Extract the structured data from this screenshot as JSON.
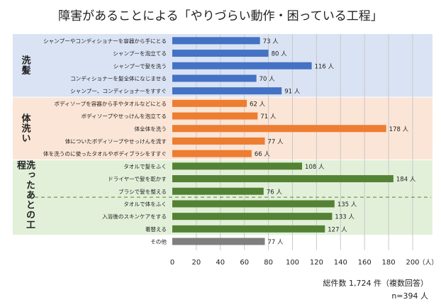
{
  "chart_data": {
    "type": "bar",
    "orientation": "horizontal",
    "title": "障害があることによる「やりづらい動作・困っている工程」",
    "xunit": "（人）",
    "xlim": [
      0,
      200
    ],
    "xticks": [
      0,
      20,
      40,
      60,
      80,
      100,
      120,
      140,
      160,
      180,
      200
    ],
    "grid": "vertical",
    "value_suffix": " 人",
    "groups": [
      {
        "label": "洗髪",
        "band_color": "#dae3f3",
        "bar_color": "#4472c4",
        "items": [
          {
            "label": "シャンプーやコンディショナーを容器から手にとる",
            "value": 73
          },
          {
            "label": "シャンプーを泡立てる",
            "value": 80
          },
          {
            "label": "シャンプーで髪を洗う",
            "value": 116
          },
          {
            "label": "コンディショナーを髪全体になじませる",
            "value": 70
          },
          {
            "label": "シャンプー、コンディショナーをすすぐ",
            "value": 91
          }
        ]
      },
      {
        "label": "体洗い",
        "band_color": "#fbe5d6",
        "bar_color": "#ed7d31",
        "items": [
          {
            "label": "ボディソープを容器から手やタオルなどにとる",
            "value": 62
          },
          {
            "label": "ボディソープやせっけんを泡立てる",
            "value": 71
          },
          {
            "label": "体全体を洗う",
            "value": 178
          },
          {
            "label": "体についたボディソープやせっけんを流す",
            "value": 77
          },
          {
            "label": "体を洗うのに使ったタオルやボディブラシをすすぐ",
            "value": 66
          }
        ]
      },
      {
        "label": "洗ったあとの工程",
        "band_color": "#e2f0d9",
        "bar_color": "#548235",
        "items": [
          {
            "label": "タオルで髪をふく",
            "value": 108
          },
          {
            "label": "ドライヤーで髪を乾かす",
            "value": 184
          },
          {
            "label": "ブラシで髪を整える",
            "value": 76
          },
          {
            "label": "タオルで体をふく",
            "value": 135
          },
          {
            "label": "入浴後のスキンケアをする",
            "value": 133
          },
          {
            "label": "着替える",
            "value": 127
          }
        ]
      },
      {
        "label": "",
        "band_color": "",
        "bar_color": "#7f7f7f",
        "items": [
          {
            "label": "その他",
            "value": 77
          }
        ]
      }
    ]
  },
  "footer": {
    "total": "総件数 1,724 件（複数回答）",
    "n": "n=394 人"
  }
}
